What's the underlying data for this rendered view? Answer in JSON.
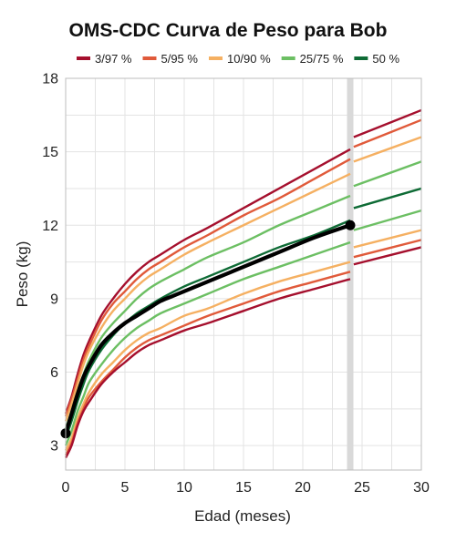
{
  "chart_data": {
    "type": "line",
    "title": "OMS-CDC Curva de Peso para Bob",
    "xlabel": "Edad (meses)",
    "ylabel": "Peso (kg)",
    "xlim": [
      0,
      30
    ],
    "ylim": [
      2,
      18
    ],
    "xticks": [
      0,
      5,
      10,
      15,
      20,
      25,
      30
    ],
    "xtick_labels": [
      "0",
      "5",
      "10",
      "15",
      "20",
      "25",
      "30"
    ],
    "yticks": [
      3,
      6,
      9,
      12,
      15,
      18
    ],
    "ytick_labels": [
      "3",
      "6",
      "9",
      "12",
      "15",
      "18"
    ],
    "grid": true,
    "legend_position": "top",
    "legend": [
      {
        "label": "3/97 %",
        "color": "#a50f2d"
      },
      {
        "label": "5/95 %",
        "color": "#e05a3a"
      },
      {
        "label": "10/90 %",
        "color": "#f5b062"
      },
      {
        "label": "25/75 %",
        "color": "#6cbf63"
      },
      {
        "label": "50 %",
        "color": "#0e6b35"
      }
    ],
    "transition_band_x": 24,
    "percentile_curves": {
      "who_segment": {
        "x": [
          0,
          0.5,
          1,
          1.5,
          2,
          3,
          4,
          5,
          6,
          7,
          8,
          10,
          12,
          15,
          18,
          21,
          24
        ],
        "curves": [
          {
            "group": "3/97 %",
            "color": "#a50f2d",
            "y": [
              4.3,
              5.0,
              5.9,
              6.7,
              7.3,
              8.3,
              9.0,
              9.6,
              10.1,
              10.5,
              10.8,
              11.4,
              11.9,
              12.7,
              13.5,
              14.3,
              15.1
            ]
          },
          {
            "group": "5/95 %",
            "color": "#e05a3a",
            "y": [
              4.2,
              4.9,
              5.7,
              6.5,
              7.1,
              8.1,
              8.8,
              9.3,
              9.8,
              10.2,
              10.5,
              11.1,
              11.6,
              12.4,
              13.1,
              13.9,
              14.7
            ]
          },
          {
            "group": "10/90 %",
            "color": "#f5b062",
            "y": [
              4.0,
              4.7,
              5.5,
              6.3,
              6.9,
              7.8,
              8.5,
              9.0,
              9.5,
              9.9,
              10.2,
              10.8,
              11.3,
              12.0,
              12.7,
              13.4,
              14.1
            ]
          },
          {
            "group": "25/75 %",
            "color": "#6cbf63",
            "y": [
              3.7,
              4.4,
              5.2,
              5.9,
              6.5,
              7.4,
              8.0,
              8.5,
              9.0,
              9.4,
              9.7,
              10.2,
              10.7,
              11.3,
              12.0,
              12.6,
              13.2
            ]
          },
          {
            "group": "50 %",
            "color": "#0e6b35",
            "y": [
              3.3,
              4.0,
              4.8,
              5.5,
              6.1,
              6.9,
              7.5,
              8.0,
              8.4,
              8.7,
              9.0,
              9.5,
              9.9,
              10.5,
              11.1,
              11.6,
              12.2
            ]
          },
          {
            "group": "25/75 %",
            "color": "#6cbf63",
            "y": [
              3.0,
              3.6,
              4.4,
              5.0,
              5.6,
              6.3,
              6.9,
              7.4,
              7.8,
              8.1,
              8.4,
              8.8,
              9.2,
              9.8,
              10.3,
              10.8,
              11.3
            ]
          },
          {
            "group": "10/90 %",
            "color": "#f5b062",
            "y": [
              2.8,
              3.3,
              4.1,
              4.7,
              5.2,
              5.9,
              6.4,
              6.9,
              7.3,
              7.6,
              7.8,
              8.3,
              8.6,
              9.2,
              9.7,
              10.1,
              10.5
            ]
          },
          {
            "group": "5/95 %",
            "color": "#e05a3a",
            "y": [
              2.6,
              3.1,
              3.9,
              4.5,
              5.0,
              5.6,
              6.1,
              6.6,
              7.0,
              7.3,
              7.5,
              7.9,
              8.3,
              8.8,
              9.3,
              9.7,
              10.1
            ]
          },
          {
            "group": "3/97 %",
            "color": "#a50f2d",
            "y": [
              2.5,
              3.0,
              3.8,
              4.4,
              4.8,
              5.5,
              6.0,
              6.4,
              6.8,
              7.1,
              7.3,
              7.7,
              8.0,
              8.5,
              9.0,
              9.4,
              9.8
            ]
          }
        ]
      },
      "cdc_segment": {
        "x": [
          24.3,
          30
        ],
        "curves": [
          {
            "group": "3/97 %",
            "color": "#a50f2d",
            "y": [
              15.6,
              16.7
            ]
          },
          {
            "group": "5/95 %",
            "color": "#e05a3a",
            "y": [
              15.2,
              16.3
            ]
          },
          {
            "group": "10/90 %",
            "color": "#f5b062",
            "y": [
              14.6,
              15.6
            ]
          },
          {
            "group": "25/75 %",
            "color": "#6cbf63",
            "y": [
              13.6,
              14.6
            ]
          },
          {
            "group": "50 %",
            "color": "#0e6b35",
            "y": [
              12.7,
              13.5
            ]
          },
          {
            "group": "25/75 %",
            "color": "#6cbf63",
            "y": [
              11.8,
              12.6
            ]
          },
          {
            "group": "10/90 %",
            "color": "#f5b062",
            "y": [
              11.1,
              11.8
            ]
          },
          {
            "group": "5/95 %",
            "color": "#e05a3a",
            "y": [
              10.7,
              11.4
            ]
          },
          {
            "group": "3/97 %",
            "color": "#a50f2d",
            "y": [
              10.4,
              11.1
            ]
          }
        ]
      }
    },
    "patient_series": {
      "color": "#000000",
      "x": [
        0,
        0.5,
        1,
        1.5,
        2,
        3,
        4,
        5,
        6,
        7,
        8,
        9,
        10,
        12,
        15,
        18,
        21,
        24
      ],
      "y": [
        3.5,
        4.3,
        5.1,
        5.8,
        6.3,
        7.1,
        7.6,
        8.0,
        8.3,
        8.6,
        8.9,
        9.1,
        9.3,
        9.7,
        10.3,
        10.9,
        11.5,
        12.0
      ],
      "markers": [
        {
          "x": 0,
          "y": 3.5
        },
        {
          "x": 24,
          "y": 12.0
        }
      ]
    }
  }
}
